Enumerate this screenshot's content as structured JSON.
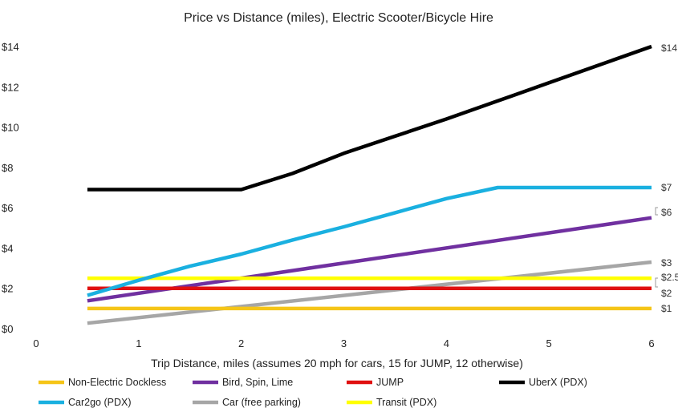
{
  "chart_data": {
    "type": "line",
    "title": "Price vs Distance (miles), Electric Scooter/Bicycle Hire",
    "xlabel": "Trip Distance, miles (assumes 20 mph for cars, 15 for JUMP, 12 otherwise)",
    "ylabel": "",
    "xlim": [
      0,
      6
    ],
    "ylim": [
      0,
      14
    ],
    "x_ticks": [
      0,
      1,
      2,
      3,
      4,
      5,
      6
    ],
    "y_ticks": [
      0,
      2,
      4,
      6,
      8,
      10,
      12,
      14
    ],
    "y_tick_labels": [
      "$0",
      "$2",
      "$4",
      "$6",
      "$8",
      "$10",
      "$12",
      "$14"
    ],
    "series": [
      {
        "name": "Non-Electric Dockless",
        "color": "#f5c518",
        "x": [
          0.5,
          6
        ],
        "y": [
          1,
          1
        ],
        "end_label": "$1"
      },
      {
        "name": "Bird, Spin, Lime",
        "color": "#7030a0",
        "x": [
          0.5,
          6
        ],
        "y": [
          1.38,
          5.5
        ],
        "end_label": "$6"
      },
      {
        "name": "JUMP",
        "color": "#e01010",
        "x": [
          0.5,
          6
        ],
        "y": [
          2,
          2
        ],
        "end_label": "$2"
      },
      {
        "name": "UberX (PDX)",
        "color": "#000000",
        "x": [
          0.5,
          2,
          2.5,
          3,
          3.5,
          4,
          4.5,
          5,
          5.5,
          6
        ],
        "y": [
          6.9,
          6.9,
          7.7,
          8.7,
          9.55,
          10.4,
          11.3,
          12.2,
          13.1,
          14
        ],
        "end_label": "$14"
      },
      {
        "name": "Car2go (PDX)",
        "color": "#1ab0e0",
        "x": [
          0.5,
          1,
          1.5,
          2,
          2.5,
          3,
          3.5,
          4,
          4.5,
          5,
          5.5,
          6
        ],
        "y": [
          1.65,
          2.4,
          3.1,
          3.7,
          4.4,
          5.05,
          5.75,
          6.45,
          7,
          7,
          7,
          7
        ],
        "end_label": "$7"
      },
      {
        "name": "Car (free parking)",
        "color": "#a6a6a6",
        "x": [
          0.5,
          6
        ],
        "y": [
          0.27,
          3.3
        ],
        "end_label": "$3"
      },
      {
        "name": "Transit (PDX)",
        "color": "#ffff00",
        "x": [
          0.5,
          6
        ],
        "y": [
          2.5,
          2.5
        ],
        "end_label": "$2.5"
      }
    ],
    "legend_placement": "bottom"
  }
}
